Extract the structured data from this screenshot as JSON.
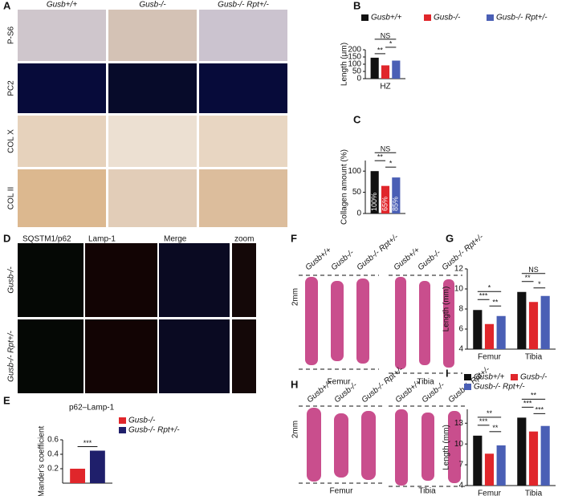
{
  "figure": {
    "panel_labels": [
      "A",
      "B",
      "C",
      "D",
      "E",
      "F",
      "G",
      "H",
      "I"
    ],
    "panel_a": {
      "columns": [
        "Gusb+/+",
        "Gusb-/-",
        "Gusb-/- Rpt+/-"
      ],
      "rows": [
        "P-S6",
        "PC2",
        "COL X",
        "COL II"
      ]
    },
    "panel_d": {
      "columns": [
        "SQSTM1/p62",
        "Lamp-1",
        "Merge",
        "zoom"
      ],
      "rows": [
        "Gusb-/-",
        "Gusb-/- Rpt+/-"
      ]
    },
    "panel_f": {
      "labels": [
        "Gusb+/+",
        "Gusb-/-",
        "Gusb-/- Rpt+/-",
        "Gusb+/+",
        "Gusb-/-",
        "Gusb-/- Rpt+/-"
      ],
      "scale": "2mm",
      "bones": [
        "Femur",
        "Tibia"
      ]
    },
    "panel_h": {
      "labels": [
        "Gusb+/+",
        "Gusb-/-",
        "Gusb-/- Rpt+/-",
        "Gusb+/+",
        "Gusb-/-",
        "Gusb-/- Rpt+/-"
      ],
      "scale": "2mm",
      "bones": [
        "Femur",
        "Tibia"
      ]
    }
  },
  "chart_data": [
    {
      "type": "bar",
      "ylabel": "Length (μm)",
      "categories": [
        "HZ"
      ],
      "series": [
        {
          "name": "Gusb+/+",
          "color": "#111111",
          "values": [
            145
          ]
        },
        {
          "name": "Gusb-/-",
          "color": "#e0262b",
          "values": [
            92
          ]
        },
        {
          "name": "Gusb-/- Rpt+/-",
          "color": "#4a5fb5",
          "values": [
            125
          ]
        }
      ],
      "ylim": [
        0,
        200
      ],
      "yticks": [
        0,
        50,
        100,
        150,
        200
      ],
      "annotations": [
        [
          "NS",
          "*",
          "**"
        ]
      ]
    },
    {
      "type": "bar",
      "ylabel": "Collagen amount (%)",
      "categories": [
        null
      ],
      "series": [
        {
          "color": "#111111",
          "values": [
            100
          ],
          "value_labels": [
            "100%"
          ]
        },
        {
          "color": "#e0262b",
          "values": [
            65
          ],
          "value_labels": [
            "65%"
          ]
        },
        {
          "color": "#4a5fb5",
          "values": [
            85
          ],
          "value_labels": [
            "85%"
          ]
        }
      ],
      "ylim": [
        0,
        125
      ],
      "yticks": [
        0,
        50,
        100
      ],
      "annotations": [
        [
          "NS",
          "**",
          "*"
        ]
      ]
    },
    {
      "type": "bar",
      "title": "p62–Lamp-1",
      "ylabel": "Mander's coefficient",
      "categories": [
        null
      ],
      "series": [
        {
          "name": "Gusb-/-",
          "color": "#e0262b",
          "values": [
            0.2
          ]
        },
        {
          "name": "Gusb-/- Rpt+/-",
          "color": "#1f1f6b",
          "values": [
            0.45
          ]
        }
      ],
      "ylim": [
        0,
        0.6
      ],
      "yticks": [
        0.2,
        0.4,
        0.6
      ],
      "annotations": [
        [
          "***"
        ]
      ]
    },
    {
      "type": "bar",
      "ylabel": "Length (mm)",
      "categories": [
        "Femur",
        "Tibia"
      ],
      "series": [
        {
          "color": "#111111",
          "values": [
            7.9,
            9.7
          ]
        },
        {
          "color": "#e0262b",
          "values": [
            6.5,
            8.7
          ]
        },
        {
          "color": "#4a5fb5",
          "values": [
            7.3,
            9.3
          ]
        }
      ],
      "ylim": [
        4,
        12
      ],
      "yticks": [
        4,
        6,
        8,
        10,
        12
      ],
      "annotations": [
        [
          "*",
          "***",
          "**"
        ],
        [
          "NS",
          "**",
          "*"
        ]
      ]
    },
    {
      "type": "bar",
      "ylabel": "Length (mm)",
      "categories": [
        "Femur",
        "Tibia"
      ],
      "series": [
        {
          "name": "Gusb+/+",
          "color": "#111111",
          "values": [
            11.2,
            13.8
          ]
        },
        {
          "name": "Gusb-/-",
          "color": "#e0262b",
          "values": [
            8.6,
            11.8
          ]
        },
        {
          "name": "Gusb-/- Rpt+/-",
          "color": "#4a5fb5",
          "values": [
            9.8,
            12.6
          ]
        }
      ],
      "ylim": [
        4,
        15
      ],
      "yticks": [
        4,
        7,
        10,
        13
      ],
      "annotations": [
        [
          "**",
          "***",
          "**"
        ],
        [
          "**",
          "***",
          "***"
        ]
      ]
    }
  ]
}
